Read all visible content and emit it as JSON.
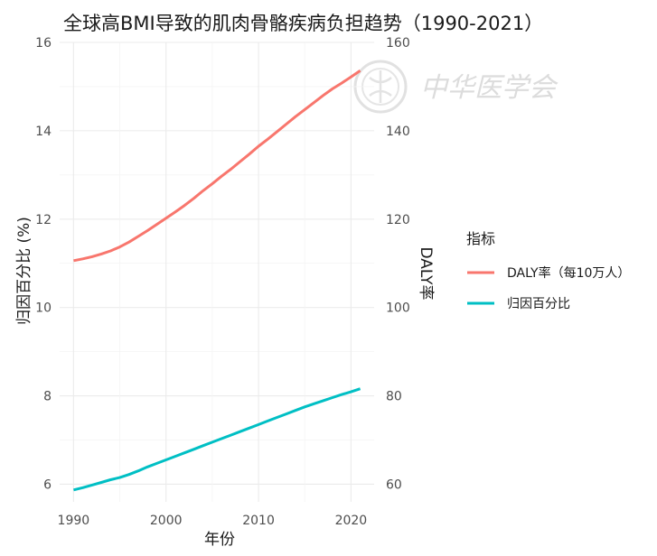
{
  "chart_data": {
    "type": "line",
    "title": "全球高BMI导致的肌肉骨骼疾病负担趋势（1990-2021）",
    "xlabel": "年份",
    "ylabel_left": "归因百分比 (%)",
    "ylabel_right": "DALY率",
    "xlim": [
      1990,
      2021
    ],
    "x_ticks": [
      1990,
      2000,
      2010,
      2020
    ],
    "ylim_left": [
      5.6,
      16.0
    ],
    "y_ticks_left": [
      6,
      8,
      10,
      12,
      14,
      16
    ],
    "ylim_right": [
      56,
      160
    ],
    "y_ticks_right": [
      60,
      80,
      100,
      120,
      140,
      160
    ],
    "legend_title": "指标",
    "series": [
      {
        "name": "DALY率（每10万人）",
        "axis": "right",
        "color": "#F8766D",
        "x": [
          1990,
          1991,
          1992,
          1993,
          1994,
          1995,
          1996,
          1997,
          1998,
          1999,
          2000,
          2001,
          2002,
          2003,
          2004,
          2005,
          2006,
          2007,
          2008,
          2009,
          2010,
          2011,
          2012,
          2013,
          2014,
          2015,
          2016,
          2017,
          2018,
          2019,
          2020,
          2021
        ],
        "values": [
          110.6,
          111.0,
          111.5,
          112.1,
          112.8,
          113.7,
          114.8,
          116.1,
          117.4,
          118.8,
          120.2,
          121.6,
          123.1,
          124.7,
          126.4,
          128.0,
          129.7,
          131.3,
          133.0,
          134.7,
          136.5,
          138.1,
          139.8,
          141.5,
          143.2,
          144.8,
          146.4,
          148.0,
          149.5,
          150.8,
          152.2,
          153.6
        ]
      },
      {
        "name": "归因百分比",
        "axis": "left",
        "color": "#00BFC4",
        "x": [
          1990,
          1991,
          1992,
          1993,
          1994,
          1995,
          1996,
          1997,
          1998,
          1999,
          2000,
          2001,
          2002,
          2003,
          2004,
          2005,
          2006,
          2007,
          2008,
          2009,
          2010,
          2011,
          2012,
          2013,
          2014,
          2015,
          2016,
          2017,
          2018,
          2019,
          2020,
          2021
        ],
        "values": [
          5.87,
          5.92,
          5.98,
          6.04,
          6.1,
          6.15,
          6.22,
          6.3,
          6.39,
          6.47,
          6.55,
          6.63,
          6.71,
          6.79,
          6.87,
          6.95,
          7.03,
          7.11,
          7.19,
          7.27,
          7.35,
          7.43,
          7.51,
          7.59,
          7.67,
          7.75,
          7.82,
          7.89,
          7.96,
          8.03,
          8.09,
          8.16
        ]
      }
    ],
    "watermark": "中华医学会"
  }
}
